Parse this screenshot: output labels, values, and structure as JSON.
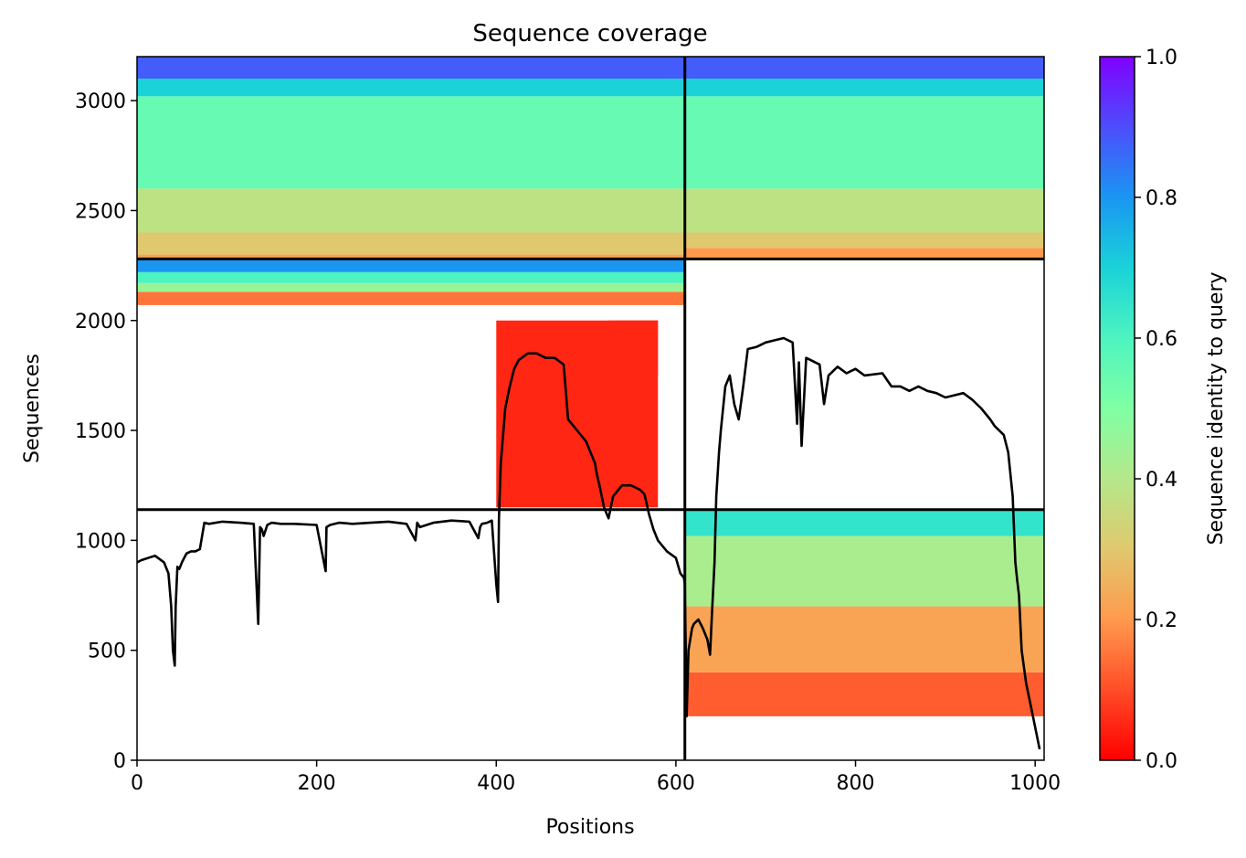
{
  "chart_data": {
    "type": "heatmap",
    "title": "Sequence coverage",
    "xlabel": "Positions",
    "ylabel": "Sequences",
    "colorbar_label": "Sequence identity to query",
    "xlim": [
      0,
      1010
    ],
    "ylim": [
      0,
      3200
    ],
    "clim": [
      0,
      1
    ],
    "colormap": "rainbow",
    "grid": false,
    "x_ticks": [
      0,
      200,
      400,
      600,
      800,
      1000
    ],
    "y_ticks": [
      0,
      500,
      1000,
      1500,
      2000,
      2500,
      3000
    ],
    "colorbar_ticks": [
      0.0,
      0.2,
      0.4,
      0.6,
      0.8,
      1.0
    ],
    "x_tick_labels": [
      "0",
      "200",
      "400",
      "600",
      "800",
      "1000"
    ],
    "y_tick_labels": [
      "0",
      "500",
      "1000",
      "1500",
      "2000",
      "2500",
      "3000"
    ],
    "colorbar_tick_labels": [
      "0.0",
      "0.2",
      "0.4",
      "0.6",
      "0.8",
      "1.0"
    ],
    "chain_boundaries_x": [
      610
    ],
    "chain_boundaries_y": [
      1140,
      2280
    ],
    "blocks": [
      {
        "name": "top-left",
        "x": [
          0,
          610
        ],
        "y": [
          2280,
          3200
        ],
        "bands": [
          [
            2280,
            2300,
            0.22
          ],
          [
            2300,
            2400,
            0.3
          ],
          [
            2400,
            2600,
            0.38
          ],
          [
            2600,
            3020,
            0.55
          ],
          [
            3020,
            3100,
            0.7
          ],
          [
            3100,
            3200,
            0.88
          ]
        ]
      },
      {
        "name": "top-right",
        "x": [
          610,
          1010
        ],
        "y": [
          2280,
          3200
        ],
        "bands": [
          [
            2280,
            2330,
            0.2
          ],
          [
            2330,
            2400,
            0.3
          ],
          [
            2400,
            2600,
            0.38
          ],
          [
            2600,
            3020,
            0.55
          ],
          [
            3020,
            3100,
            0.7
          ],
          [
            3100,
            3200,
            0.88
          ]
        ]
      },
      {
        "name": "middle-left",
        "x": [
          0,
          610
        ],
        "y": [
          1140,
          2280
        ],
        "bands": [
          [
            2070,
            2130,
            0.15
          ],
          [
            2130,
            2170,
            0.45
          ],
          [
            2170,
            2220,
            0.6
          ],
          [
            2220,
            2280,
            0.8
          ]
        ]
      },
      {
        "name": "bottom-right",
        "x": [
          610,
          1010
        ],
        "y": [
          0,
          1140
        ],
        "bands": [
          [
            200,
            400,
            0.12
          ],
          [
            400,
            700,
            0.22
          ],
          [
            700,
            1020,
            0.42
          ],
          [
            1020,
            1140,
            0.65
          ]
        ]
      }
    ],
    "red_blocks": [
      {
        "x": [
          400,
          580
        ],
        "y": [
          1150,
          2000
        ],
        "value": 0.05
      },
      {
        "x": [
          525,
          580
        ],
        "y": [
          1750,
          2000
        ],
        "value": 0.05
      }
    ],
    "coverage_line": {
      "name": "",
      "x": [
        0,
        5,
        20,
        30,
        35,
        38,
        40,
        42,
        43,
        45,
        47,
        50,
        55,
        60,
        65,
        70,
        75,
        80,
        95,
        115,
        130,
        135,
        137,
        139,
        141,
        145,
        150,
        160,
        175,
        200,
        210,
        211,
        215,
        225,
        240,
        260,
        280,
        300,
        310,
        312,
        315,
        330,
        350,
        370,
        380,
        382,
        384,
        390,
        395,
        400,
        402,
        403,
        405,
        410,
        415,
        420,
        425,
        435,
        445,
        455,
        465,
        475,
        477,
        480,
        490,
        500,
        505,
        510,
        512,
        515,
        520,
        525,
        530,
        540,
        550,
        555,
        560,
        565,
        570,
        575,
        580,
        590,
        600,
        605,
        609,
        610,
        612,
        614,
        618,
        620,
        625,
        630,
        635,
        638,
        640,
        643,
        645,
        648,
        650,
        655,
        660,
        665,
        670,
        675,
        680,
        690,
        700,
        710,
        720,
        730,
        735,
        737,
        740,
        745,
        750,
        760,
        765,
        770,
        780,
        790,
        800,
        810,
        830,
        840,
        850,
        860,
        870,
        880,
        890,
        900,
        910,
        920,
        930,
        940,
        950,
        955,
        960,
        965,
        970,
        975,
        978,
        980,
        982,
        985,
        990,
        995,
        1000,
        1005
      ],
      "y": [
        900,
        910,
        930,
        900,
        850,
        700,
        500,
        430,
        700,
        880,
        870,
        900,
        940,
        950,
        950,
        960,
        1080,
        1075,
        1085,
        1080,
        1075,
        620,
        1060,
        1050,
        1020,
        1070,
        1080,
        1075,
        1075,
        1070,
        860,
        1060,
        1070,
        1080,
        1075,
        1080,
        1085,
        1075,
        1000,
        1080,
        1060,
        1080,
        1090,
        1085,
        1010,
        1060,
        1075,
        1080,
        1090,
        800,
        720,
        1100,
        1350,
        1600,
        1700,
        1780,
        1820,
        1850,
        1850,
        1830,
        1830,
        1800,
        1700,
        1550,
        1500,
        1450,
        1400,
        1350,
        1300,
        1250,
        1150,
        1100,
        1200,
        1250,
        1250,
        1240,
        1230,
        1210,
        1120,
        1050,
        1000,
        950,
        920,
        850,
        830,
        800,
        200,
        500,
        600,
        620,
        640,
        600,
        550,
        480,
        650,
        900,
        1200,
        1400,
        1500,
        1700,
        1750,
        1620,
        1550,
        1700,
        1870,
        1880,
        1900,
        1910,
        1920,
        1900,
        1530,
        1810,
        1430,
        1830,
        1820,
        1800,
        1620,
        1750,
        1790,
        1760,
        1780,
        1750,
        1760,
        1700,
        1700,
        1680,
        1700,
        1680,
        1670,
        1650,
        1660,
        1670,
        1640,
        1600,
        1550,
        1520,
        1500,
        1480,
        1400,
        1200,
        900,
        820,
        750,
        500,
        350,
        250,
        150,
        50
      ]
    }
  }
}
